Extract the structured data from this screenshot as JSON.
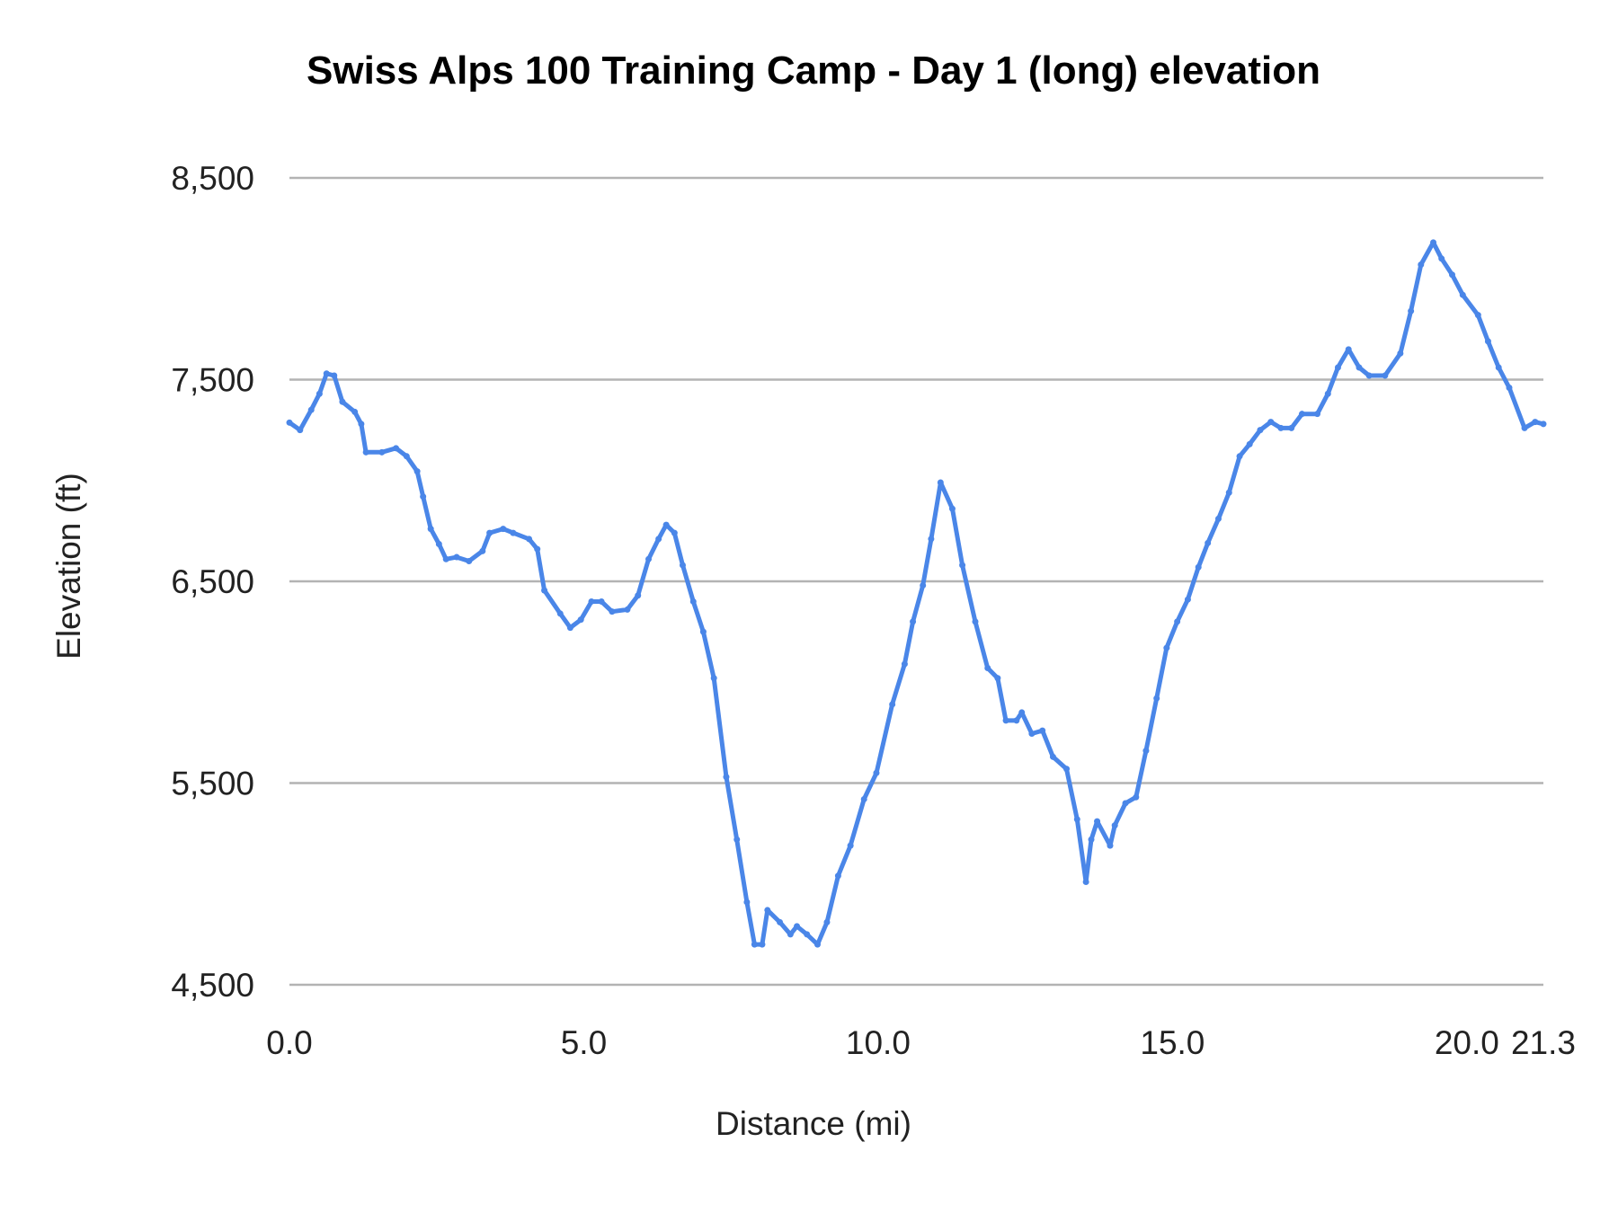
{
  "chart_data": {
    "type": "line",
    "title": "Swiss Alps 100 Training Camp - Day 1 (long) elevation",
    "xlabel": "Distance (mi)",
    "ylabel": "Elevation (ft)",
    "xlim": [
      0,
      21.3
    ],
    "ylim": [
      4500,
      8500
    ],
    "x_ticks": [
      "0.0",
      "5.0",
      "10.0",
      "15.0",
      "20.0",
      "21.3"
    ],
    "x_tick_values": [
      0,
      5,
      10,
      15,
      20,
      21.3
    ],
    "y_ticks": [
      "4,500",
      "5,500",
      "6,500",
      "7,500",
      "8,500"
    ],
    "y_tick_values": [
      4500,
      5500,
      6500,
      7500,
      8500
    ],
    "grid": "horizontal",
    "legend": "none",
    "color": "#4a86e8",
    "series": [
      {
        "x": [
          0,
          0.18,
          0.37,
          0.51,
          0.63,
          0.76,
          0.9,
          1.11,
          1.22,
          1.3,
          1.57,
          1.81,
          1.99,
          2.17,
          2.27,
          2.4,
          2.54,
          2.66,
          2.84,
          3.05,
          3.28,
          3.4,
          3.63,
          3.8,
          4.07,
          4.21,
          4.33,
          4.6,
          4.77,
          4.95,
          5.13,
          5.3,
          5.48,
          5.74,
          5.92,
          6.1,
          6.27,
          6.4,
          6.54,
          6.68,
          6.86,
          7.03,
          7.21,
          7.42,
          7.6,
          7.77,
          7.9,
          8.03,
          8.12,
          8.33,
          8.51,
          8.62,
          8.79,
          8.97,
          9.13,
          9.32,
          9.53,
          9.76,
          9.97,
          10.24,
          10.45,
          10.59,
          10.76,
          10.9,
          11.06,
          11.26,
          11.43,
          11.65,
          11.86,
          12.03,
          12.17,
          12.35,
          12.44,
          12.61,
          12.79,
          12.97,
          13.2,
          13.38,
          13.53,
          13.62,
          13.72,
          13.94,
          14.02,
          14.2,
          14.38,
          14.55,
          14.73,
          14.9,
          15.08,
          15.26,
          15.44,
          15.6,
          15.78,
          15.96,
          16.14,
          16.31,
          16.49,
          16.67,
          16.84,
          17.02,
          17.2,
          17.46,
          17.64,
          17.81,
          17.99,
          18.17,
          18.34,
          18.61,
          18.87,
          19.05,
          19.22,
          19.43,
          19.57,
          19.75,
          19.93,
          20.19,
          20.36,
          20.54,
          20.72,
          20.98,
          21.16,
          21.3
        ],
        "y": [
          7287,
          7250,
          7350,
          7430,
          7530,
          7520,
          7390,
          7340,
          7280,
          7140,
          7140,
          7160,
          7120,
          7045,
          6920,
          6760,
          6685,
          6610,
          6620,
          6600,
          6650,
          6740,
          6760,
          6740,
          6710,
          6660,
          6455,
          6340,
          6270,
          6310,
          6400,
          6400,
          6350,
          6360,
          6430,
          6610,
          6710,
          6780,
          6740,
          6580,
          6400,
          6250,
          6020,
          5530,
          5220,
          4910,
          4700,
          4700,
          4870,
          4810,
          4750,
          4790,
          4750,
          4700,
          4810,
          5040,
          5190,
          5420,
          5550,
          5890,
          6090,
          6300,
          6480,
          6710,
          6990,
          6860,
          6580,
          6300,
          6070,
          6020,
          5810,
          5810,
          5850,
          5745,
          5760,
          5630,
          5570,
          5320,
          5010,
          5220,
          5310,
          5190,
          5290,
          5400,
          5430,
          5660,
          5920,
          6170,
          6300,
          6410,
          6570,
          6690,
          6810,
          6940,
          7120,
          7180,
          7250,
          7290,
          7260,
          7260,
          7330,
          7330,
          7430,
          7560,
          7650,
          7560,
          7520,
          7520,
          7630,
          7840,
          8070,
          8180,
          8100,
          8020,
          7920,
          7820,
          7690,
          7560,
          7460,
          7260,
          7290,
          7280
        ]
      }
    ]
  }
}
